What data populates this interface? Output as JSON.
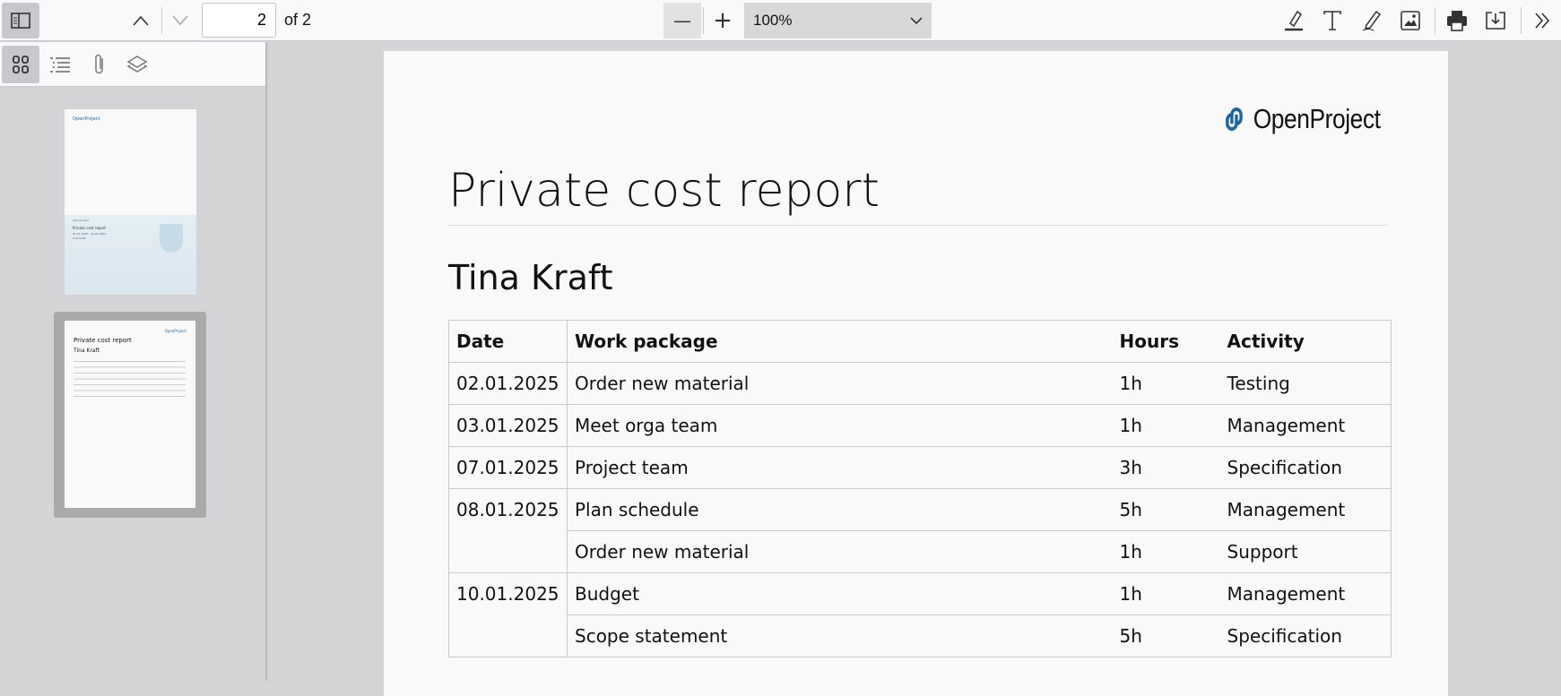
{
  "toolbar": {
    "page_number": "2",
    "page_count_label": "of 2",
    "zoom_level": "100%",
    "minus_label": "—",
    "plus_label": "+"
  },
  "sidebar": {
    "thumbnails": [
      {
        "page": 1,
        "lines": [
          "OpenProject",
          "Private cost report",
          "01.01.2025 - 10.01.2025",
          "Tina Kraft"
        ]
      },
      {
        "page": 2,
        "selected": true
      }
    ]
  },
  "document": {
    "logo_text": "OpenProject",
    "logo_color": "#1a67a3",
    "title": "Private cost report",
    "person": "Tina Kraft",
    "table": {
      "headers": [
        "Date",
        "Work package",
        "Hours",
        "Activity"
      ],
      "rows": [
        {
          "date": "02.01.2025",
          "work_package": "Order new material",
          "hours": "1h",
          "activity": "Testing"
        },
        {
          "date": "03.01.2025",
          "work_package": "Meet orga team",
          "hours": "1h",
          "activity": "Management"
        },
        {
          "date": "07.01.2025",
          "work_package": "Project team",
          "hours": "3h",
          "activity": "Specification"
        },
        {
          "date": "08.01.2025",
          "work_package": "Plan schedule",
          "hours": "5h",
          "activity": "Management"
        },
        {
          "date": "",
          "work_package": "Order new material",
          "hours": "1h",
          "activity": "Support"
        },
        {
          "date": "10.01.2025",
          "work_package": "Budget",
          "hours": "1h",
          "activity": "Management"
        },
        {
          "date": "",
          "work_package": "Scope statement",
          "hours": "5h",
          "activity": "Specification"
        }
      ]
    }
  }
}
